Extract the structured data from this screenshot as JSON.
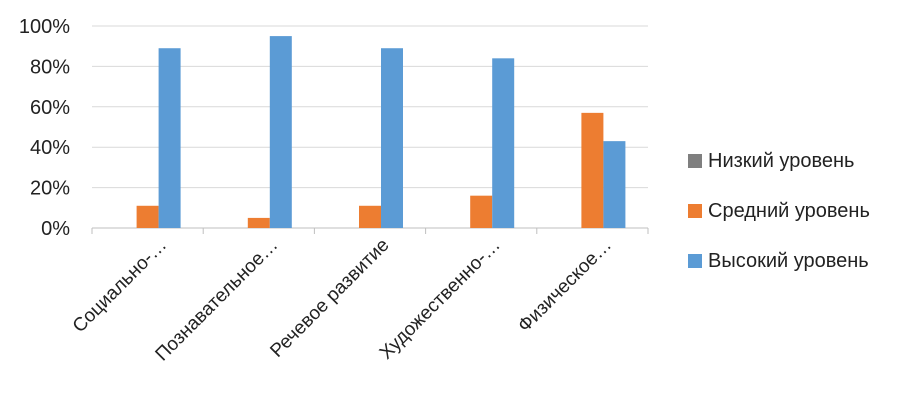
{
  "chart_data": {
    "type": "bar",
    "categories": [
      "Социально-…",
      "Познавательное…",
      "Речевое развитие",
      "Художественно-…",
      "Физическое…"
    ],
    "series": [
      {
        "name": "Низкий уровень",
        "color": "#7f7f7f",
        "values": [
          0,
          0,
          0,
          0,
          0
        ]
      },
      {
        "name": "Средний уровень",
        "color": "#ed7d31",
        "values": [
          11,
          5,
          11,
          16,
          57
        ]
      },
      {
        "name": "Высокий уровень",
        "color": "#5b9bd5",
        "values": [
          89,
          95,
          89,
          84,
          43
        ]
      }
    ],
    "ylim": [
      0,
      100
    ],
    "yticks": [
      "0%",
      "20%",
      "40%",
      "60%",
      "80%",
      "100%"
    ],
    "grid": true,
    "legend_position": "right"
  }
}
